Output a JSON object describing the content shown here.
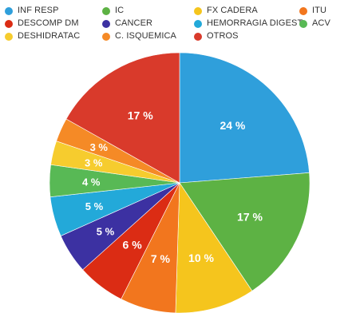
{
  "chart_data": {
    "type": "pie",
    "categories": [
      "INF RESP",
      "IC",
      "FX CADERA",
      "ITU",
      "DESCOMP DM",
      "CANCER",
      "HEMORRAGIA DIGEST",
      "ACV",
      "DESHIDRATAC",
      "C. ISQUEMICA",
      "OTROS"
    ],
    "values": [
      24,
      17,
      10,
      7,
      6,
      5,
      5,
      4,
      3,
      3,
      17
    ],
    "slice_labels": [
      "24 %",
      "17 %",
      "10 %",
      "7 %",
      "6 %",
      "5 %",
      "5 %",
      "4 %",
      "3 %",
      "3 %",
      "17 %"
    ],
    "colors": [
      "#2f9fdb",
      "#5db244",
      "#f5c51d",
      "#f2761e",
      "#db2c14",
      "#3c31a2",
      "#23a9d9",
      "#58b955",
      "#f6cc2e",
      "#f58a26",
      "#d93a2b"
    ],
    "legend_placement": "top",
    "start_angle_deg": 0,
    "direction": "clockwise"
  }
}
